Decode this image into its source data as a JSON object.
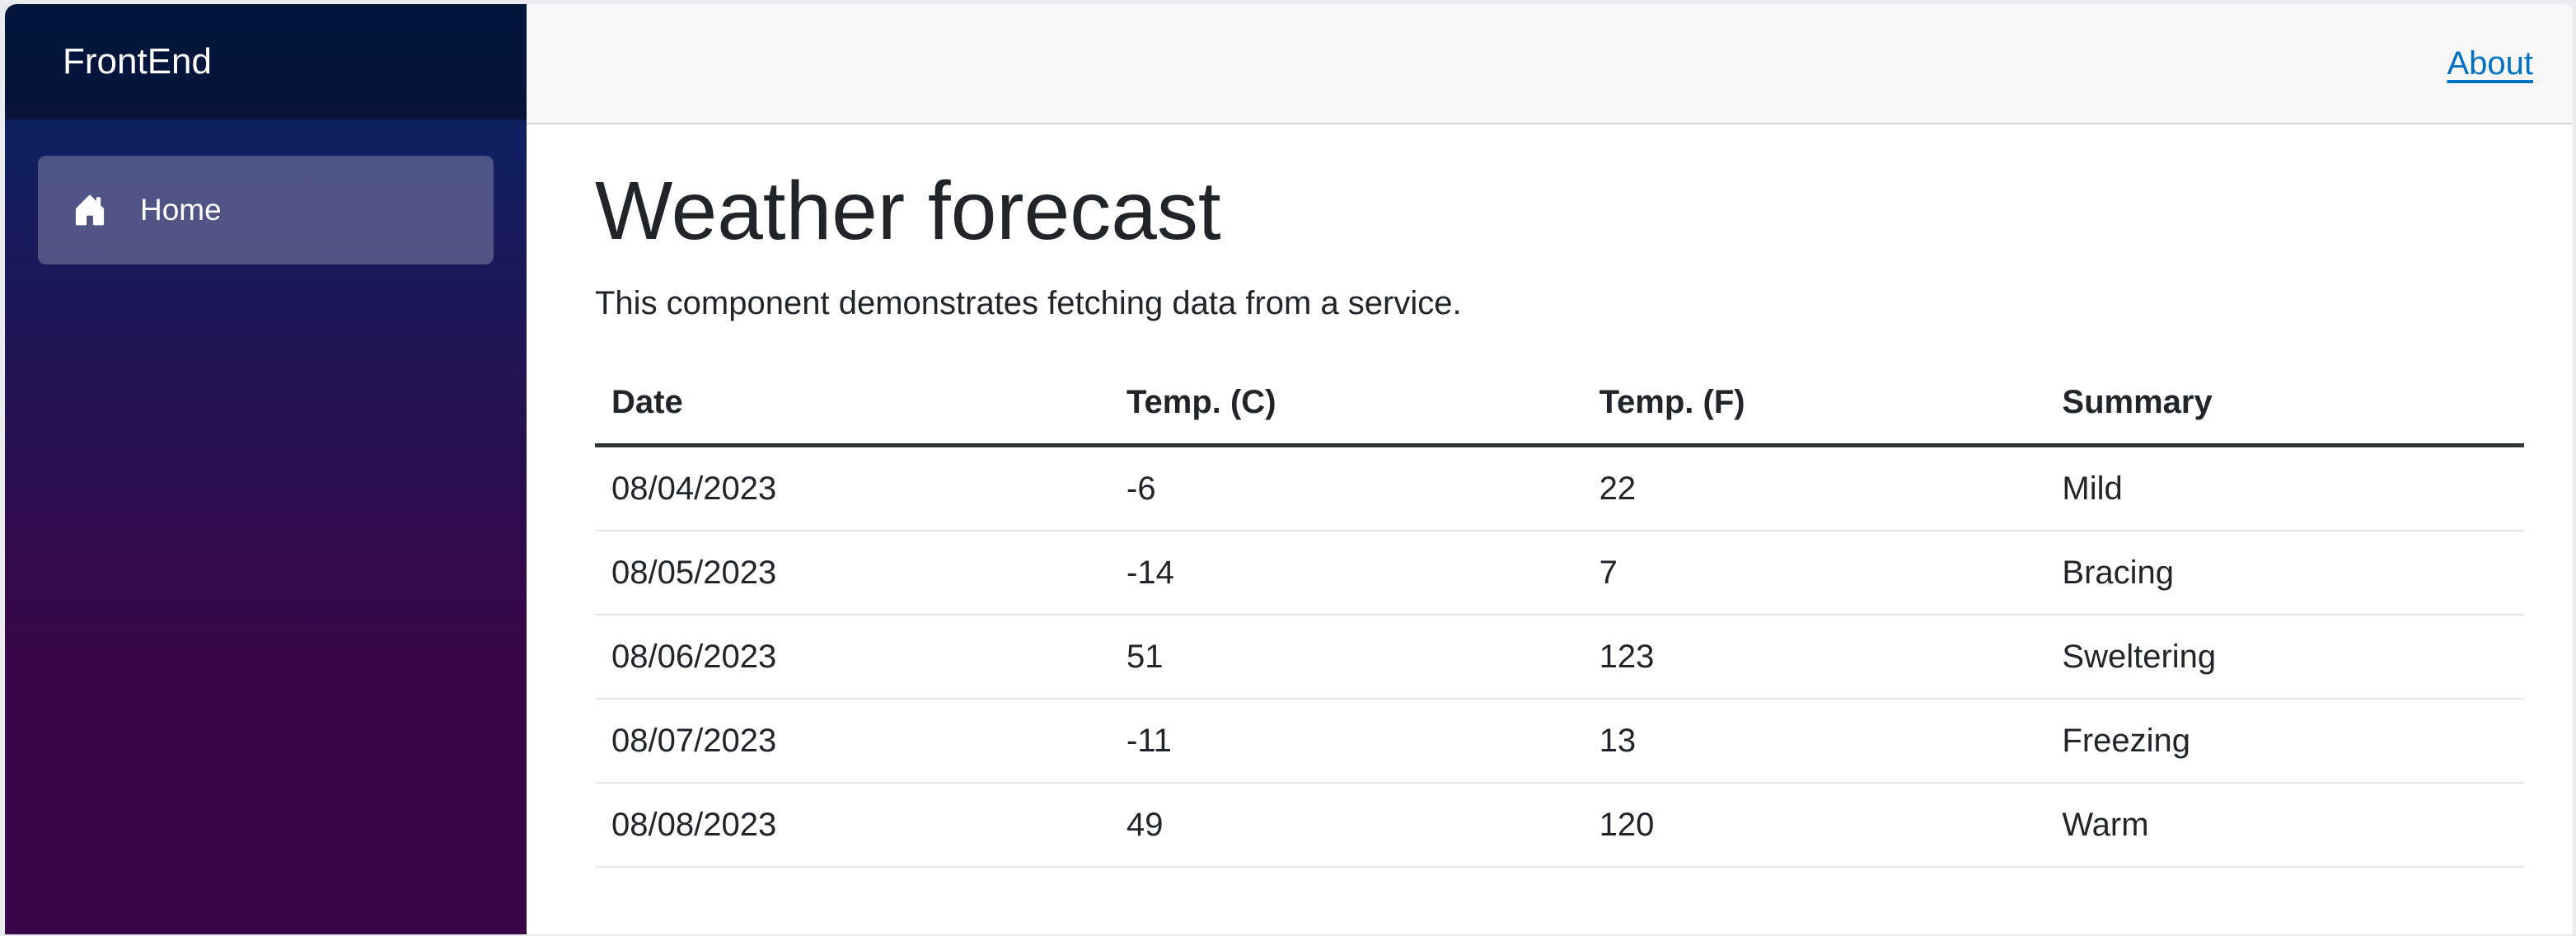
{
  "sidebar": {
    "brand": "FrontEnd",
    "nav": [
      {
        "label": "Home",
        "icon": "house-icon",
        "active": true
      }
    ]
  },
  "header": {
    "links": [
      {
        "label": "About"
      }
    ]
  },
  "main": {
    "title": "Weather forecast",
    "description": "This component demonstrates fetching data from a service.",
    "table": {
      "columns": [
        "Date",
        "Temp. (C)",
        "Temp. (F)",
        "Summary"
      ],
      "rows": [
        [
          "08/04/2023",
          "-6",
          "22",
          "Mild"
        ],
        [
          "08/05/2023",
          "-14",
          "7",
          "Bracing"
        ],
        [
          "08/06/2023",
          "51",
          "123",
          "Sweltering"
        ],
        [
          "08/07/2023",
          "-11",
          "13",
          "Freezing"
        ],
        [
          "08/08/2023",
          "49",
          "120",
          "Warm"
        ]
      ]
    }
  },
  "colors": {
    "sidebar_gradient_top": "#052767",
    "sidebar_gradient_bottom": "#3a0647",
    "sidebar_top_overlay": "rgba(0,0,0,0.4)",
    "sidebar_active_bg": "rgba(255,255,255,0.25)",
    "top_bar_bg": "#f7f7f7",
    "top_bar_border": "#d6d5d5",
    "link_blue": "#0071c1",
    "text": "#212529",
    "table_row_border": "#e3e6ea"
  }
}
